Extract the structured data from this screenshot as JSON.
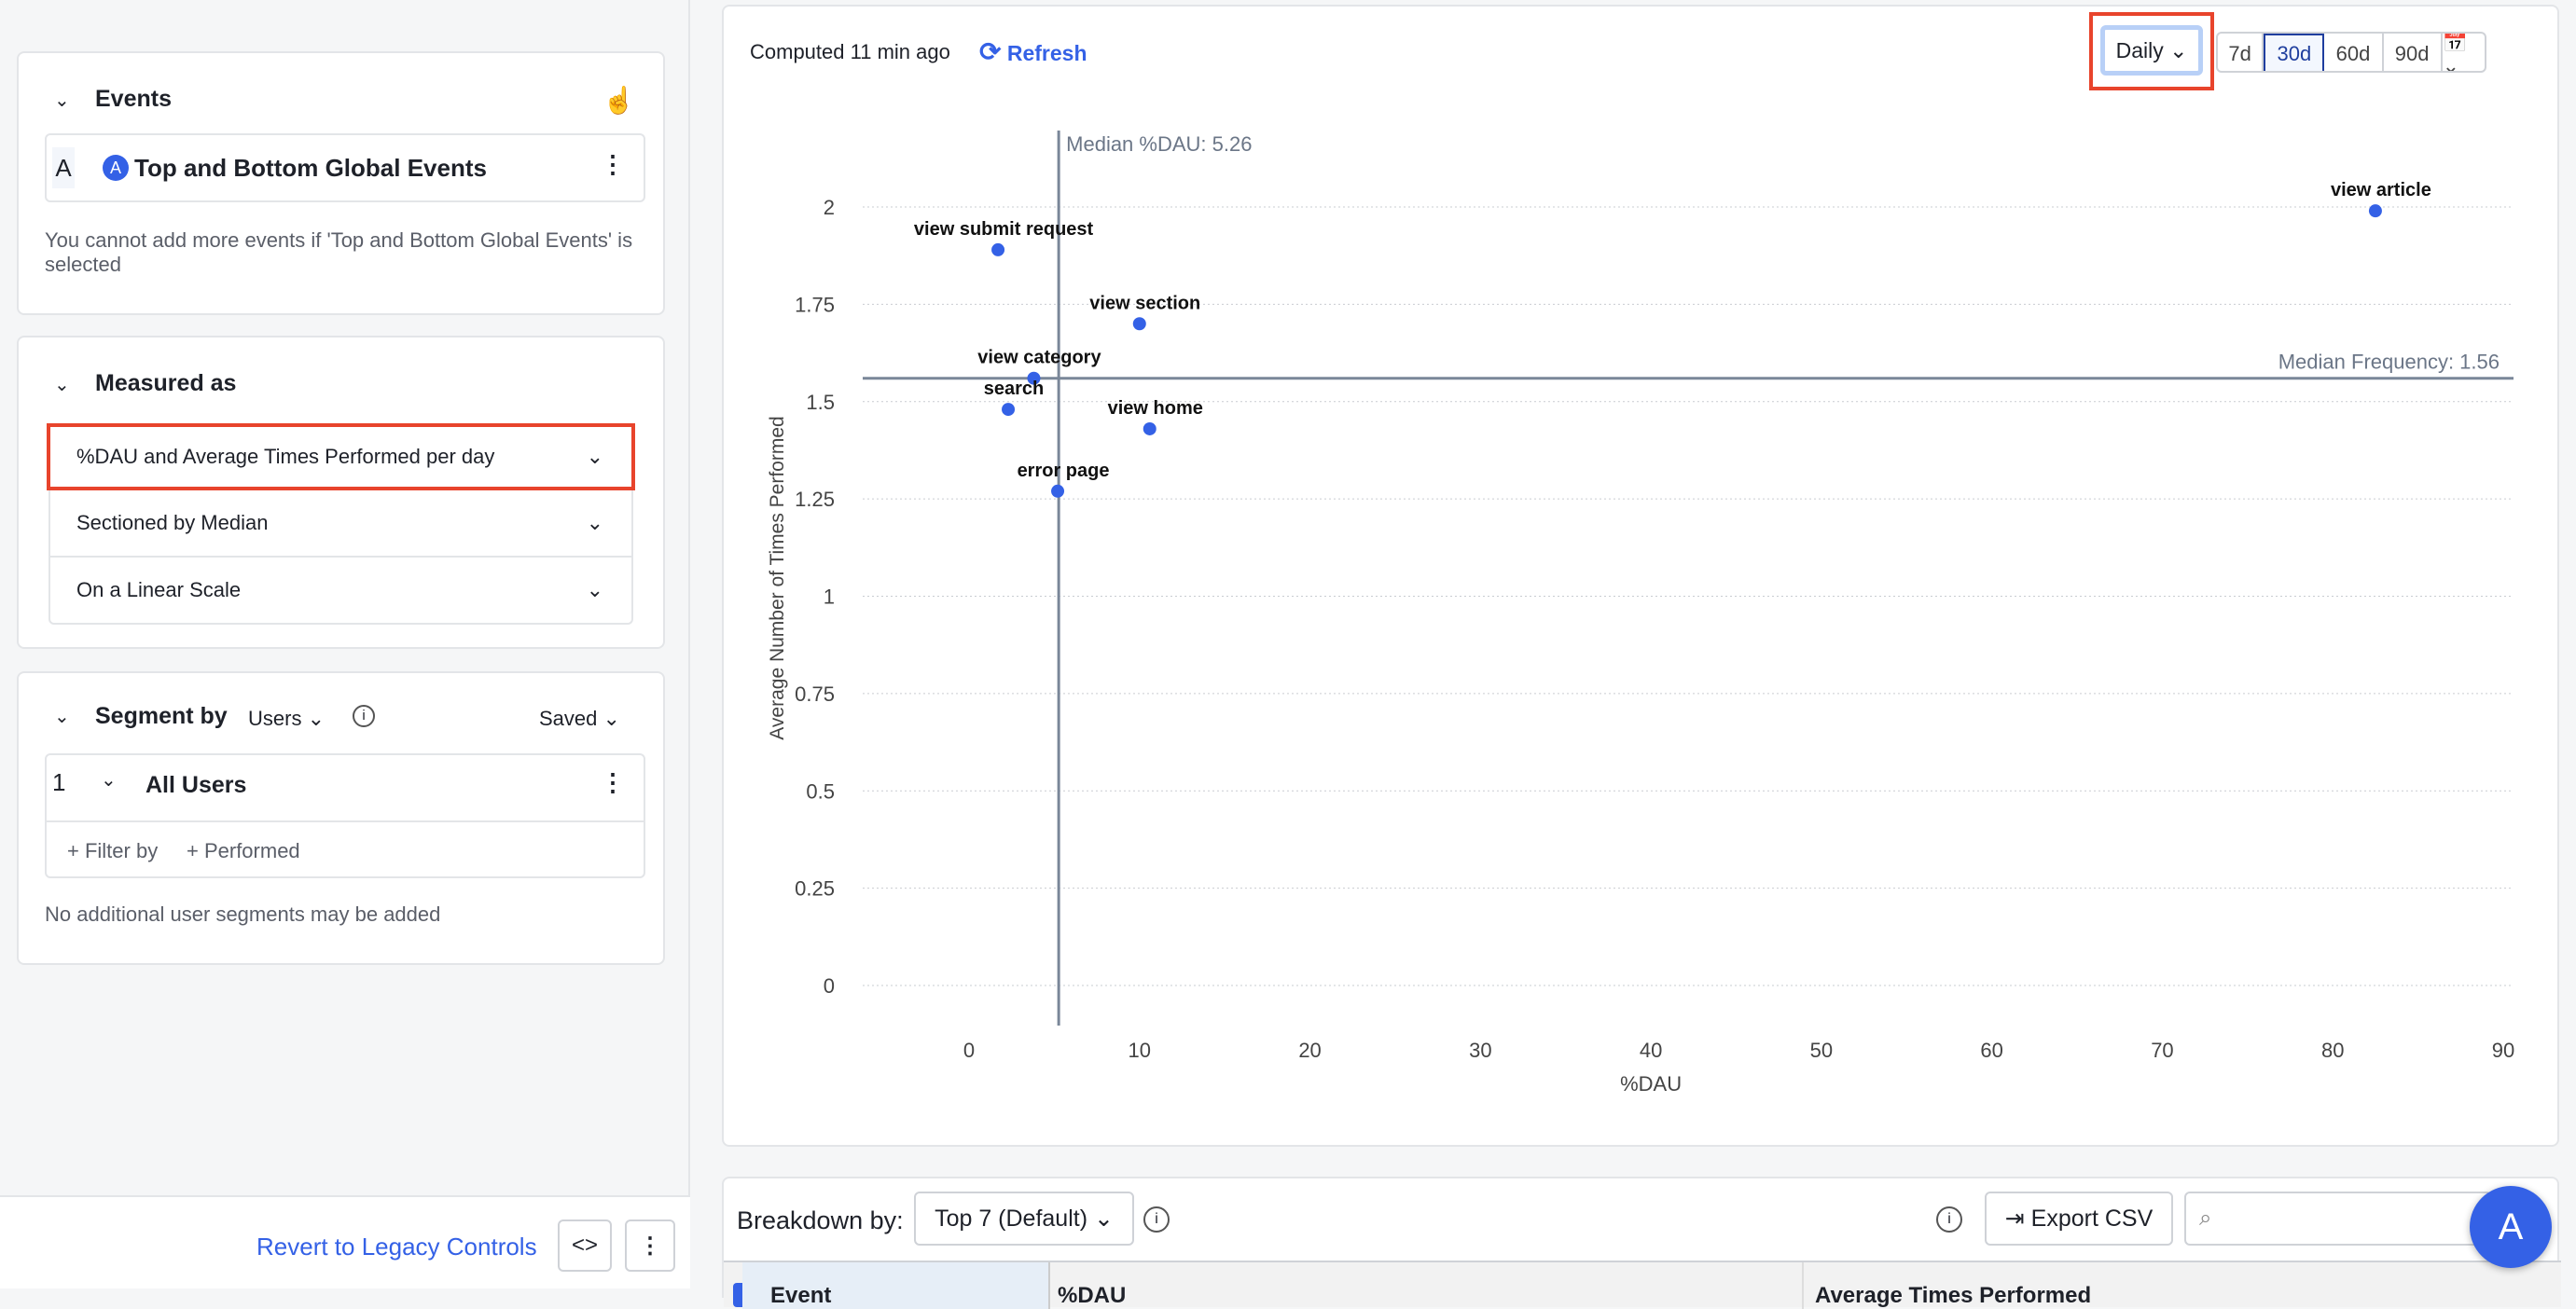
{
  "events": {
    "title": "Events",
    "letter": "A",
    "event_name": "Top and Bottom Global Events",
    "note": "You cannot add more events if 'Top and Bottom Global Events' is selected"
  },
  "measured": {
    "title": "Measured as",
    "metric": "%DAU and Average Times Performed per day",
    "section": "Sectioned by Median",
    "scale": "On a Linear Scale"
  },
  "segment": {
    "title": "Segment by",
    "users_label": "Users",
    "saved_label": "Saved",
    "index": "1",
    "name": "All Users",
    "filter_by": "+ Filter by",
    "performed": "+ Performed",
    "note": "No additional user segments may be added"
  },
  "footer": {
    "revert": "Revert to Legacy Controls"
  },
  "header": {
    "computed": "Computed 11 min ago",
    "refresh": "Refresh",
    "interval": "Daily",
    "ranges": [
      "7d",
      "30d",
      "60d",
      "90d"
    ],
    "active_range": "30d"
  },
  "breakdown": {
    "label": "Breakdown by:",
    "value": "Top 7 (Default)",
    "export": "Export CSV",
    "columns": [
      "Event",
      "%DAU",
      "Average Times Performed"
    ]
  },
  "chart_data": {
    "type": "scatter",
    "xlabel": "%DAU",
    "ylabel": "Average Number of Times Performed",
    "xlim": [
      -6,
      91
    ],
    "ylim": [
      -0.1,
      2.1
    ],
    "xticks": [
      0,
      10,
      20,
      30,
      40,
      50,
      60,
      70,
      80,
      90
    ],
    "yticks": [
      0,
      0.25,
      0.5,
      0.75,
      1,
      1.25,
      1.5,
      1.75,
      2
    ],
    "median_x": {
      "value": 5.26,
      "label": "Median %DAU: 5.26"
    },
    "median_y": {
      "value": 1.56,
      "label": "Median Frequency: 1.56"
    },
    "points": [
      {
        "name": "view article",
        "x": 82.5,
        "y": 1.99
      },
      {
        "name": "view submit request",
        "x": 1.7,
        "y": 1.89
      },
      {
        "name": "view section",
        "x": 10,
        "y": 1.7
      },
      {
        "name": "view category",
        "x": 3.8,
        "y": 1.56
      },
      {
        "name": "search",
        "x": 2.3,
        "y": 1.48
      },
      {
        "name": "view home",
        "x": 10.6,
        "y": 1.43
      },
      {
        "name": "error page",
        "x": 5.2,
        "y": 1.27
      }
    ],
    "color": "#3461e6"
  }
}
